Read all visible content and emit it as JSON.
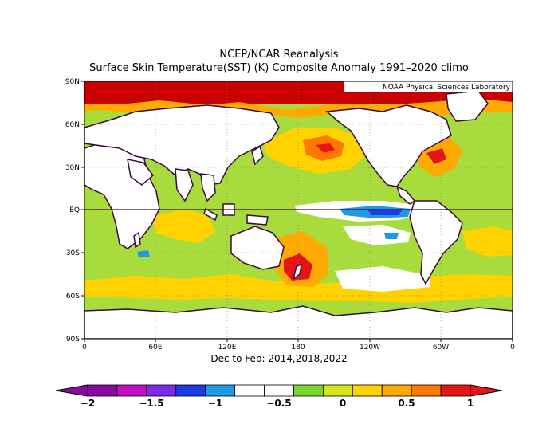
{
  "title": "NCEP/NCAR Reanalysis",
  "subtitle": "Surface Skin Temperature(SST) (K) Composite Anomaly 1991–2020 climo",
  "credit": "NOAA Physical Sciences Laboratory",
  "xlabel": "Dec to Feb: 2014,2018,2022",
  "map": {
    "projection": "cylindrical equidistant",
    "lon_range": [
      0,
      360
    ],
    "lat_range": [
      -90,
      90
    ],
    "grid": "dotted",
    "lat_ticks": [
      {
        "lat": 90,
        "label": "90N"
      },
      {
        "lat": 60,
        "label": "60N"
      },
      {
        "lat": 30,
        "label": "30N"
      },
      {
        "lat": 0,
        "label": "EQ"
      },
      {
        "lat": -30,
        "label": "30S"
      },
      {
        "lat": -60,
        "label": "60S"
      },
      {
        "lat": -90,
        "label": "90S"
      }
    ],
    "lon_ticks": [
      {
        "lon": 0,
        "label": "0"
      },
      {
        "lon": 60,
        "label": "60E"
      },
      {
        "lon": 120,
        "label": "120E"
      },
      {
        "lon": 180,
        "label": "180"
      },
      {
        "lon": 240,
        "label": "120W"
      },
      {
        "lon": 300,
        "label": "60W"
      },
      {
        "lon": 360,
        "label": "0"
      }
    ]
  },
  "colorbar": {
    "colors": [
      "#8a0aa0",
      "#c40ec4",
      "#7a2ce6",
      "#1c3ae6",
      "#1c9ae6",
      "#ffffff",
      "#ffffff",
      "#7ad62e",
      "#d8e61c",
      "#ffd200",
      "#ffaa00",
      "#ff7800",
      "#e61414"
    ],
    "labels": [
      {
        "value": -2,
        "text": "−2"
      },
      {
        "value": -1.5,
        "text": "−1.5"
      },
      {
        "value": -1,
        "text": "−1"
      },
      {
        "value": -0.5,
        "text": "−0.5"
      },
      {
        "value": 0,
        "text": "0"
      },
      {
        "value": 0.5,
        "text": "0.5"
      },
      {
        "value": 1,
        "text": "1"
      }
    ]
  },
  "colors": {
    "land": "#ffffff",
    "coast": "#3a0a3a",
    "base_anomaly": "#a8dc3c",
    "warm_moderate": "#ffd200",
    "warm_strong": "#ff7800",
    "warm_extreme": "#c80000",
    "cold_moderate": "#1c9ae6",
    "cold_strong": "#1c3ae6"
  }
}
